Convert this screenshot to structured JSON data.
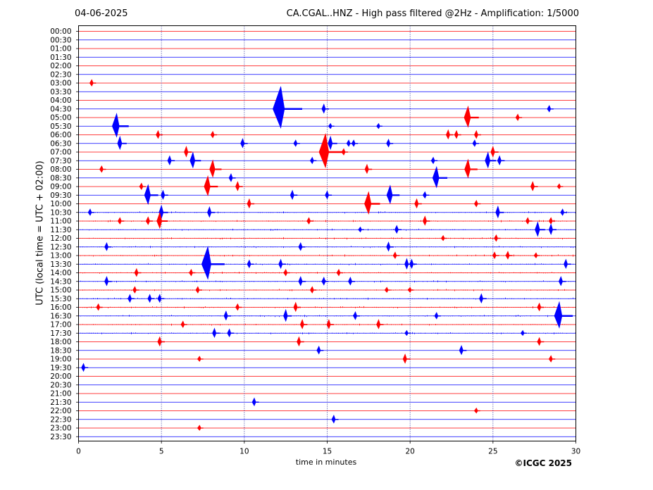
{
  "header": {
    "date": "04-06-2025",
    "title": "CA.CGAL..HNZ - High pass filtered @2Hz - Amplification: 1/5000"
  },
  "footer": {
    "copyright": "©ICGC 2025"
  },
  "chart_data": {
    "type": "line",
    "xlabel": "time in minutes",
    "ylabel": "UTC (local time = UTC + 02:00)",
    "xlim": [
      0,
      30
    ],
    "x_ticks": [
      "0",
      "5",
      "10",
      "15",
      "20",
      "25",
      "30"
    ],
    "vertical_grid_minutes": [
      5,
      10,
      15,
      20,
      25
    ],
    "grid": "vertical dotted at 5-minute intervals",
    "row_colors": [
      "#ff0000",
      "#0000ff"
    ],
    "rows": [
      "00:00",
      "00:30",
      "01:00",
      "01:30",
      "02:00",
      "02:30",
      "03:00",
      "03:30",
      "04:00",
      "04:30",
      "05:00",
      "05:30",
      "06:00",
      "06:30",
      "07:00",
      "07:30",
      "08:00",
      "08:30",
      "09:00",
      "09:30",
      "10:00",
      "10:30",
      "11:00",
      "11:30",
      "12:00",
      "12:30",
      "13:00",
      "13:30",
      "14:00",
      "14:30",
      "15:00",
      "15:30",
      "16:00",
      "16:30",
      "17:00",
      "17:30",
      "18:00",
      "18:30",
      "19:00",
      "19:30",
      "20:00",
      "20:30",
      "21:00",
      "21:30",
      "22:00",
      "22:30",
      "23:00",
      "23:30"
    ],
    "events": [
      {
        "row": "03:00",
        "minute": 0.8,
        "amplitude": 5
      },
      {
        "row": "04:30",
        "minute": 12.2,
        "amplitude": 32
      },
      {
        "row": "04:30",
        "minute": 14.8,
        "amplitude": 7
      },
      {
        "row": "04:30",
        "minute": 28.4,
        "amplitude": 5
      },
      {
        "row": "05:00",
        "minute": 23.5,
        "amplitude": 16
      },
      {
        "row": "05:00",
        "minute": 26.5,
        "amplitude": 5
      },
      {
        "row": "05:30",
        "minute": 2.3,
        "amplitude": 18
      },
      {
        "row": "05:30",
        "minute": 15.2,
        "amplitude": 4
      },
      {
        "row": "05:30",
        "minute": 18.1,
        "amplitude": 4
      },
      {
        "row": "06:00",
        "minute": 4.8,
        "amplitude": 6
      },
      {
        "row": "06:00",
        "minute": 8.1,
        "amplitude": 5
      },
      {
        "row": "06:00",
        "minute": 22.3,
        "amplitude": 7
      },
      {
        "row": "06:00",
        "minute": 22.8,
        "amplitude": 6
      },
      {
        "row": "06:00",
        "minute": 24.0,
        "amplitude": 6
      },
      {
        "row": "06:30",
        "minute": 2.5,
        "amplitude": 10
      },
      {
        "row": "06:30",
        "minute": 9.9,
        "amplitude": 7
      },
      {
        "row": "06:30",
        "minute": 13.1,
        "amplitude": 5
      },
      {
        "row": "06:30",
        "minute": 15.2,
        "amplitude": 10
      },
      {
        "row": "06:30",
        "minute": 16.3,
        "amplitude": 5
      },
      {
        "row": "06:30",
        "minute": 16.6,
        "amplitude": 5
      },
      {
        "row": "06:30",
        "minute": 18.7,
        "amplitude": 6
      },
      {
        "row": "06:30",
        "minute": 23.9,
        "amplitude": 5
      },
      {
        "row": "07:00",
        "minute": 6.5,
        "amplitude": 8
      },
      {
        "row": "07:00",
        "minute": 14.9,
        "amplitude": 26
      },
      {
        "row": "07:00",
        "minute": 16.0,
        "amplitude": 5
      },
      {
        "row": "07:00",
        "minute": 25.0,
        "amplitude": 8
      },
      {
        "row": "07:30",
        "minute": 5.5,
        "amplitude": 7
      },
      {
        "row": "07:30",
        "minute": 6.9,
        "amplitude": 12
      },
      {
        "row": "07:30",
        "minute": 14.1,
        "amplitude": 5
      },
      {
        "row": "07:30",
        "minute": 21.4,
        "amplitude": 5
      },
      {
        "row": "07:30",
        "minute": 24.7,
        "amplitude": 12
      },
      {
        "row": "07:30",
        "minute": 25.4,
        "amplitude": 7
      },
      {
        "row": "08:00",
        "minute": 1.4,
        "amplitude": 5
      },
      {
        "row": "08:00",
        "minute": 8.1,
        "amplitude": 13
      },
      {
        "row": "08:00",
        "minute": 17.4,
        "amplitude": 7
      },
      {
        "row": "08:00",
        "minute": 23.5,
        "amplitude": 14
      },
      {
        "row": "08:30",
        "minute": 9.2,
        "amplitude": 6
      },
      {
        "row": "08:30",
        "minute": 21.6,
        "amplitude": 16
      },
      {
        "row": "09:00",
        "minute": 3.8,
        "amplitude": 5
      },
      {
        "row": "09:00",
        "minute": 7.8,
        "amplitude": 15
      },
      {
        "row": "09:00",
        "minute": 9.6,
        "amplitude": 7
      },
      {
        "row": "09:00",
        "minute": 27.4,
        "amplitude": 7
      },
      {
        "row": "09:00",
        "minute": 29.0,
        "amplitude": 4
      },
      {
        "row": "09:30",
        "minute": 4.2,
        "amplitude": 15
      },
      {
        "row": "09:30",
        "minute": 5.1,
        "amplitude": 7
      },
      {
        "row": "09:30",
        "minute": 12.9,
        "amplitude": 7
      },
      {
        "row": "09:30",
        "minute": 15.0,
        "amplitude": 6
      },
      {
        "row": "09:30",
        "minute": 18.8,
        "amplitude": 14
      },
      {
        "row": "09:30",
        "minute": 20.9,
        "amplitude": 5
      },
      {
        "row": "10:00",
        "minute": 10.3,
        "amplitude": 7
      },
      {
        "row": "10:00",
        "minute": 17.5,
        "amplitude": 17
      },
      {
        "row": "10:00",
        "minute": 20.4,
        "amplitude": 7
      },
      {
        "row": "10:00",
        "minute": 24.0,
        "amplitude": 5
      },
      {
        "row": "10:30",
        "minute": 0.7,
        "amplitude": 5
      },
      {
        "row": "10:30",
        "minute": 5.0,
        "amplitude": 10
      },
      {
        "row": "10:30",
        "minute": 7.9,
        "amplitude": 8
      },
      {
        "row": "10:30",
        "minute": 25.3,
        "amplitude": 9
      },
      {
        "row": "10:30",
        "minute": 29.2,
        "amplitude": 5
      },
      {
        "row": "11:00",
        "minute": 2.5,
        "amplitude": 5
      },
      {
        "row": "11:00",
        "minute": 4.2,
        "amplitude": 6
      },
      {
        "row": "11:00",
        "minute": 4.9,
        "amplitude": 12
      },
      {
        "row": "11:00",
        "minute": 13.9,
        "amplitude": 5
      },
      {
        "row": "11:00",
        "minute": 20.9,
        "amplitude": 7
      },
      {
        "row": "11:00",
        "minute": 27.1,
        "amplitude": 5
      },
      {
        "row": "11:00",
        "minute": 28.5,
        "amplitude": 5
      },
      {
        "row": "11:30",
        "minute": 17.0,
        "amplitude": 4
      },
      {
        "row": "11:30",
        "minute": 19.2,
        "amplitude": 6
      },
      {
        "row": "11:30",
        "minute": 27.7,
        "amplitude": 11
      },
      {
        "row": "11:30",
        "minute": 28.5,
        "amplitude": 8
      },
      {
        "row": "12:00",
        "minute": 22.0,
        "amplitude": 4
      },
      {
        "row": "12:00",
        "minute": 25.2,
        "amplitude": 5
      },
      {
        "row": "12:30",
        "minute": 1.7,
        "amplitude": 6
      },
      {
        "row": "12:30",
        "minute": 13.4,
        "amplitude": 6
      },
      {
        "row": "12:30",
        "minute": 18.7,
        "amplitude": 7
      },
      {
        "row": "13:00",
        "minute": 19.1,
        "amplitude": 5
      },
      {
        "row": "13:00",
        "minute": 25.1,
        "amplitude": 5
      },
      {
        "row": "13:00",
        "minute": 25.9,
        "amplitude": 6
      },
      {
        "row": "13:00",
        "minute": 27.6,
        "amplitude": 4
      },
      {
        "row": "13:30",
        "minute": 7.8,
        "amplitude": 25
      },
      {
        "row": "13:30",
        "minute": 10.3,
        "amplitude": 6
      },
      {
        "row": "13:30",
        "minute": 12.2,
        "amplitude": 7
      },
      {
        "row": "13:30",
        "minute": 19.8,
        "amplitude": 8
      },
      {
        "row": "13:30",
        "minute": 20.1,
        "amplitude": 7
      },
      {
        "row": "13:30",
        "minute": 29.4,
        "amplitude": 7
      },
      {
        "row": "14:00",
        "minute": 3.5,
        "amplitude": 6
      },
      {
        "row": "14:00",
        "minute": 6.8,
        "amplitude": 5
      },
      {
        "row": "14:00",
        "minute": 12.5,
        "amplitude": 5
      },
      {
        "row": "14:00",
        "minute": 15.7,
        "amplitude": 5
      },
      {
        "row": "14:30",
        "minute": 1.7,
        "amplitude": 7
      },
      {
        "row": "14:30",
        "minute": 13.4,
        "amplitude": 7
      },
      {
        "row": "14:30",
        "minute": 14.8,
        "amplitude": 6
      },
      {
        "row": "14:30",
        "minute": 16.4,
        "amplitude": 6
      },
      {
        "row": "14:30",
        "minute": 29.1,
        "amplitude": 7
      },
      {
        "row": "15:00",
        "minute": 3.4,
        "amplitude": 5
      },
      {
        "row": "15:00",
        "minute": 7.2,
        "amplitude": 5
      },
      {
        "row": "15:00",
        "minute": 14.1,
        "amplitude": 5
      },
      {
        "row": "15:00",
        "minute": 18.6,
        "amplitude": 4
      },
      {
        "row": "15:00",
        "minute": 20.0,
        "amplitude": 4
      },
      {
        "row": "15:30",
        "minute": 3.1,
        "amplitude": 6
      },
      {
        "row": "15:30",
        "minute": 4.3,
        "amplitude": 6
      },
      {
        "row": "15:30",
        "minute": 4.9,
        "amplitude": 6
      },
      {
        "row": "15:30",
        "minute": 24.3,
        "amplitude": 7
      },
      {
        "row": "16:00",
        "minute": 1.2,
        "amplitude": 5
      },
      {
        "row": "16:00",
        "minute": 9.6,
        "amplitude": 5
      },
      {
        "row": "16:00",
        "minute": 13.1,
        "amplitude": 7
      },
      {
        "row": "16:00",
        "minute": 27.8,
        "amplitude": 6
      },
      {
        "row": "16:30",
        "minute": 8.9,
        "amplitude": 7
      },
      {
        "row": "16:30",
        "minute": 12.5,
        "amplitude": 9
      },
      {
        "row": "16:30",
        "minute": 16.7,
        "amplitude": 6
      },
      {
        "row": "16:30",
        "minute": 21.6,
        "amplitude": 5
      },
      {
        "row": "16:30",
        "minute": 29.0,
        "amplitude": 20
      },
      {
        "row": "17:00",
        "minute": 6.3,
        "amplitude": 5
      },
      {
        "row": "17:00",
        "minute": 13.5,
        "amplitude": 7
      },
      {
        "row": "17:00",
        "minute": 15.1,
        "amplitude": 7
      },
      {
        "row": "17:00",
        "minute": 18.1,
        "amplitude": 7
      },
      {
        "row": "17:30",
        "minute": 8.2,
        "amplitude": 7
      },
      {
        "row": "17:30",
        "minute": 9.1,
        "amplitude": 6
      },
      {
        "row": "17:30",
        "minute": 19.8,
        "amplitude": 4
      },
      {
        "row": "17:30",
        "minute": 26.8,
        "amplitude": 4
      },
      {
        "row": "18:00",
        "minute": 4.9,
        "amplitude": 7
      },
      {
        "row": "18:00",
        "minute": 13.3,
        "amplitude": 7
      },
      {
        "row": "18:00",
        "minute": 27.8,
        "amplitude": 6
      },
      {
        "row": "18:30",
        "minute": 14.5,
        "amplitude": 6
      },
      {
        "row": "18:30",
        "minute": 23.1,
        "amplitude": 7
      },
      {
        "row": "19:00",
        "minute": 7.3,
        "amplitude": 4
      },
      {
        "row": "19:00",
        "minute": 19.7,
        "amplitude": 7
      },
      {
        "row": "19:00",
        "minute": 28.5,
        "amplitude": 5
      },
      {
        "row": "19:30",
        "minute": 0.3,
        "amplitude": 6
      },
      {
        "row": "21:30",
        "minute": 10.6,
        "amplitude": 6
      },
      {
        "row": "22:00",
        "minute": 24.0,
        "amplitude": 4
      },
      {
        "row": "22:30",
        "minute": 15.4,
        "amplitude": 6
      },
      {
        "row": "23:00",
        "minute": 7.3,
        "amplitude": 4
      }
    ],
    "noisy_rows": [
      "10:30",
      "11:00",
      "11:30",
      "12:00",
      "12:30",
      "13:00",
      "13:30",
      "14:00",
      "14:30",
      "15:00",
      "15:30",
      "16:00",
      "16:30",
      "17:00",
      "17:30"
    ]
  }
}
